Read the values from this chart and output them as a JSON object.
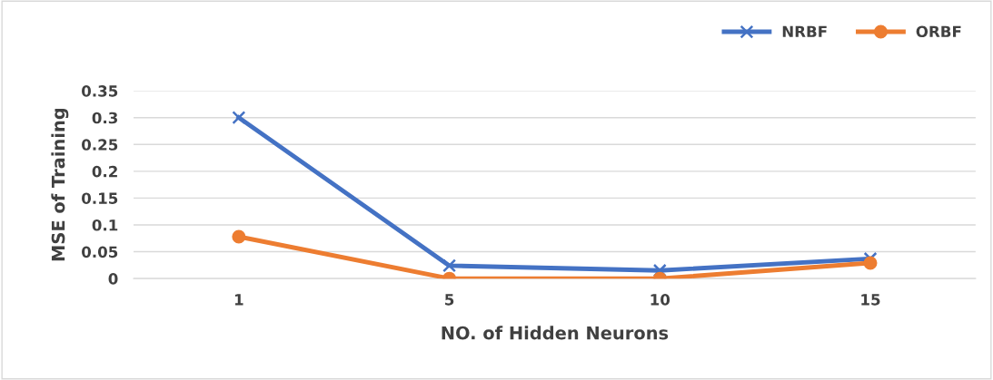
{
  "chart_data": {
    "type": "line",
    "xlabel": "NO. of Hidden Neurons",
    "ylabel": "MSE of Training",
    "categories": [
      "1",
      "5",
      "10",
      "15"
    ],
    "series": [
      {
        "name": "NRBF",
        "color": "#4472c4",
        "marker": "cross",
        "values": [
          0.3,
          0.024,
          0.015,
          0.037
        ]
      },
      {
        "name": "ORBF",
        "color": "#ed7d31",
        "marker": "circle",
        "values": [
          0.078,
          0.0,
          0.0,
          0.029
        ]
      }
    ],
    "ylim": [
      0,
      0.35
    ],
    "yticks": [
      0,
      0.05,
      0.1,
      0.15,
      0.2,
      0.25,
      0.3,
      0.35
    ],
    "grid": "y",
    "legend": "top right",
    "line_style": "solid"
  }
}
